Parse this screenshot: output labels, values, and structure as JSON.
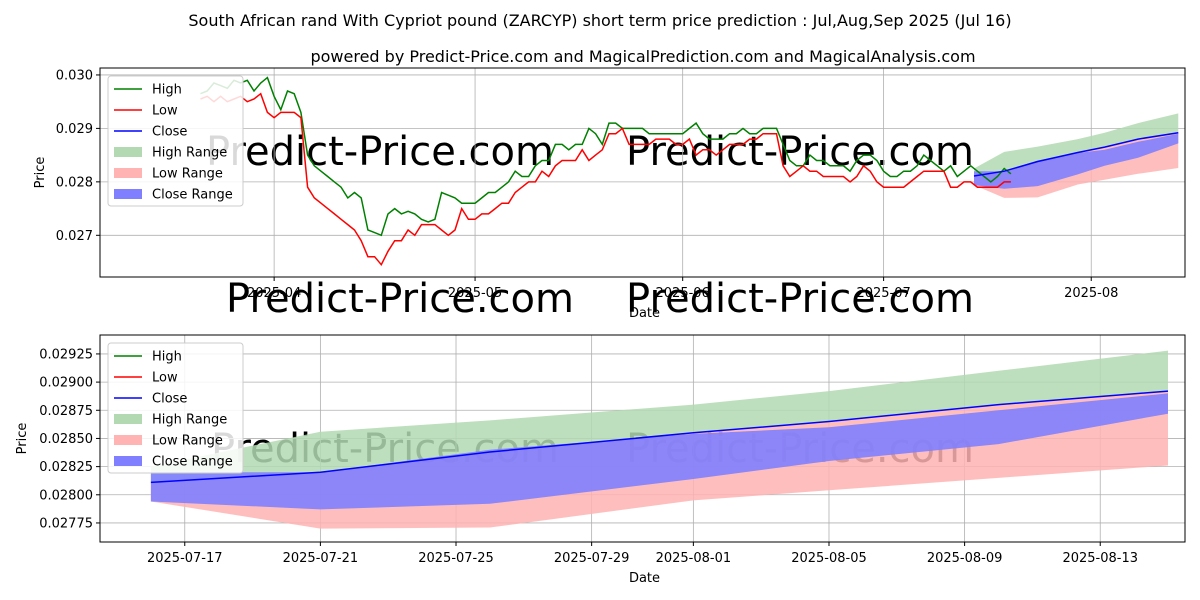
{
  "title": "South African rand With Cypriot pound (ZARCYP) short term price prediction : Jul,Aug,Sep 2025 (Jul 16)",
  "subtitle": "powered by Predict-Price.com and MagicalPrediction.com and MagicalAnalysis.com",
  "watermark": "Predict-Price.com",
  "colors": {
    "high": "#008000",
    "low": "#ff0000",
    "close": "#0000ff",
    "high_range": "#b3d9b3",
    "low_range": "#ffb3b3",
    "close_range": "#7f7fff"
  },
  "chart_data": [
    {
      "type": "line",
      "xlabel": "Date",
      "ylabel": "Price",
      "xlim": [
        -26,
        136
      ],
      "ylim": [
        0.02622,
        0.03013
      ],
      "xticks": [
        {
          "x": 0,
          "label": "2025-04"
        },
        {
          "x": 30,
          "label": "2025-05"
        },
        {
          "x": 61,
          "label": "2025-06"
        },
        {
          "x": 91,
          "label": "2025-07"
        },
        {
          "x": 122,
          "label": "2025-08"
        }
      ],
      "yticks": [
        {
          "v": 0.027,
          "label": "0.027"
        },
        {
          "v": 0.028,
          "label": "0.028"
        },
        {
          "v": 0.029,
          "label": "0.029"
        },
        {
          "v": 0.03,
          "label": "0.030"
        }
      ],
      "legend": [
        "High",
        "Low",
        "Close",
        "High Range",
        "Low Range",
        "Close Range"
      ],
      "high_x0": -11,
      "high": [
        0.02965,
        0.0297,
        0.02985,
        0.0298,
        0.02975,
        0.0299,
        0.02985,
        0.0299,
        0.0297,
        0.02985,
        0.02995,
        0.0296,
        0.02935,
        0.0297,
        0.02965,
        0.0293,
        0.0285,
        0.0283,
        0.0282,
        0.0281,
        0.028,
        0.0279,
        0.0277,
        0.0278,
        0.0277,
        0.0271,
        0.02705,
        0.027,
        0.0274,
        0.0275,
        0.0274,
        0.02745,
        0.0274,
        0.0273,
        0.02725,
        0.0273,
        0.0278,
        0.02775,
        0.0277,
        0.0276,
        0.0276,
        0.0276,
        0.0277,
        0.0278,
        0.0278,
        0.0279,
        0.028,
        0.0282,
        0.0281,
        0.0281,
        0.0283,
        0.0284,
        0.0284,
        0.0287,
        0.0287,
        0.0286,
        0.0287,
        0.0287,
        0.029,
        0.0289,
        0.0287,
        0.0291,
        0.0291,
        0.029,
        0.029,
        0.029,
        0.029,
        0.0289,
        0.0289,
        0.0289,
        0.0289,
        0.0289,
        0.0289,
        0.029,
        0.0291,
        0.0289,
        0.0288,
        0.0288,
        0.0288,
        0.0289,
        0.0289,
        0.029,
        0.0289,
        0.0289,
        0.029,
        0.029,
        0.029,
        0.0287,
        0.0284,
        0.0283,
        0.0283,
        0.0285,
        0.0284,
        0.0284,
        0.0283,
        0.0283,
        0.0283,
        0.0282,
        0.0284,
        0.0285,
        0.0285,
        0.0284,
        0.0282,
        0.0281,
        0.0281,
        0.0282,
        0.0282,
        0.0283,
        0.0285,
        0.0284,
        0.0283,
        0.0282,
        0.0283,
        0.0281,
        0.0282,
        0.0283,
        0.0282,
        0.0281,
        0.028,
        0.0281,
        0.02825,
        0.02815
      ],
      "low_x0": -11,
      "low": [
        0.02955,
        0.0296,
        0.0295,
        0.0296,
        0.0295,
        0.02955,
        0.0296,
        0.0295,
        0.02955,
        0.02965,
        0.0293,
        0.0292,
        0.0293,
        0.0293,
        0.0293,
        0.0292,
        0.0279,
        0.0277,
        0.0276,
        0.0275,
        0.0274,
        0.0273,
        0.0272,
        0.0271,
        0.0269,
        0.0266,
        0.0266,
        0.02645,
        0.0267,
        0.0269,
        0.0269,
        0.0271,
        0.027,
        0.0272,
        0.0272,
        0.0272,
        0.0271,
        0.027,
        0.0271,
        0.0275,
        0.0273,
        0.0273,
        0.0274,
        0.0274,
        0.0275,
        0.0276,
        0.0276,
        0.0278,
        0.0279,
        0.028,
        0.028,
        0.0282,
        0.0281,
        0.0283,
        0.0284,
        0.0284,
        0.0284,
        0.0286,
        0.0284,
        0.0285,
        0.0286,
        0.0289,
        0.0289,
        0.029,
        0.0287,
        0.0287,
        0.0287,
        0.0287,
        0.0288,
        0.0288,
        0.0288,
        0.0287,
        0.0287,
        0.0288,
        0.0285,
        0.0286,
        0.0286,
        0.0285,
        0.0286,
        0.0287,
        0.0287,
        0.0287,
        0.0288,
        0.0288,
        0.0289,
        0.0289,
        0.0289,
        0.0283,
        0.0281,
        0.0282,
        0.0283,
        0.0282,
        0.0282,
        0.0281,
        0.0281,
        0.0281,
        0.0281,
        0.028,
        0.0281,
        0.0283,
        0.0282,
        0.028,
        0.0279,
        0.0279,
        0.0279,
        0.0279,
        0.028,
        0.0281,
        0.0282,
        0.0282,
        0.0282,
        0.0282,
        0.0279,
        0.0279,
        0.028,
        0.028,
        0.0279,
        0.0279,
        0.0279,
        0.0279,
        0.028,
        0.028
      ],
      "forecast": {
        "x": [
          104.5,
          109,
          114,
          120,
          124,
          129,
          135
        ],
        "close": [
          0.02811,
          0.0282,
          0.02838,
          0.02855,
          0.02865,
          0.0288,
          0.02892
        ],
        "high_upper": [
          0.02825,
          0.02856,
          0.02866,
          0.0288,
          0.02892,
          0.0291,
          0.02928
        ],
        "low_lower": [
          0.02794,
          0.0277,
          0.02771,
          0.02795,
          0.02804,
          0.02815,
          0.02826
        ],
        "close_upper": [
          0.0282,
          0.0282,
          0.0284,
          0.02854,
          0.0286,
          0.02875,
          0.0289
        ],
        "close_lower": [
          0.02794,
          0.02787,
          0.02792,
          0.02814,
          0.0283,
          0.02845,
          0.02872
        ]
      }
    },
    {
      "type": "line",
      "xlabel": "Date",
      "ylabel": "Price",
      "xlim": [
        -1.5,
        30.5
      ],
      "ylim": [
        0.027581,
        0.029418
      ],
      "xticks": [
        {
          "x": 1,
          "label": "2025-07-17"
        },
        {
          "x": 5,
          "label": "2025-07-21"
        },
        {
          "x": 9,
          "label": "2025-07-25"
        },
        {
          "x": 13,
          "label": "2025-07-29"
        },
        {
          "x": 16,
          "label": "2025-08-01"
        },
        {
          "x": 20,
          "label": "2025-08-05"
        },
        {
          "x": 24,
          "label": "2025-08-09"
        },
        {
          "x": 28,
          "label": "2025-08-13"
        }
      ],
      "yticks": [
        {
          "v": 0.02775,
          "label": "0.02775"
        },
        {
          "v": 0.028,
          "label": "0.02800"
        },
        {
          "v": 0.02825,
          "label": "0.02825"
        },
        {
          "v": 0.0285,
          "label": "0.02850"
        },
        {
          "v": 0.02875,
          "label": "0.02875"
        },
        {
          "v": 0.029,
          "label": "0.02900"
        },
        {
          "v": 0.02925,
          "label": "0.02925"
        }
      ],
      "legend": [
        "High",
        "Low",
        "Close",
        "High Range",
        "Low Range",
        "Close Range"
      ],
      "forecast": {
        "x": [
          0,
          5,
          10,
          16,
          20,
          25,
          30
        ],
        "close": [
          0.02811,
          0.0282,
          0.02838,
          0.02855,
          0.02865,
          0.0288,
          0.02892
        ],
        "high_upper": [
          0.02825,
          0.02856,
          0.02866,
          0.0288,
          0.02892,
          0.0291,
          0.02928
        ],
        "low_lower": [
          0.02794,
          0.0277,
          0.02771,
          0.02795,
          0.02804,
          0.02815,
          0.02826
        ],
        "close_upper": [
          0.0282,
          0.0282,
          0.0284,
          0.02854,
          0.0286,
          0.02875,
          0.0289
        ],
        "close_lower": [
          0.02794,
          0.02787,
          0.02792,
          0.02814,
          0.0283,
          0.02845,
          0.02872
        ]
      }
    }
  ]
}
